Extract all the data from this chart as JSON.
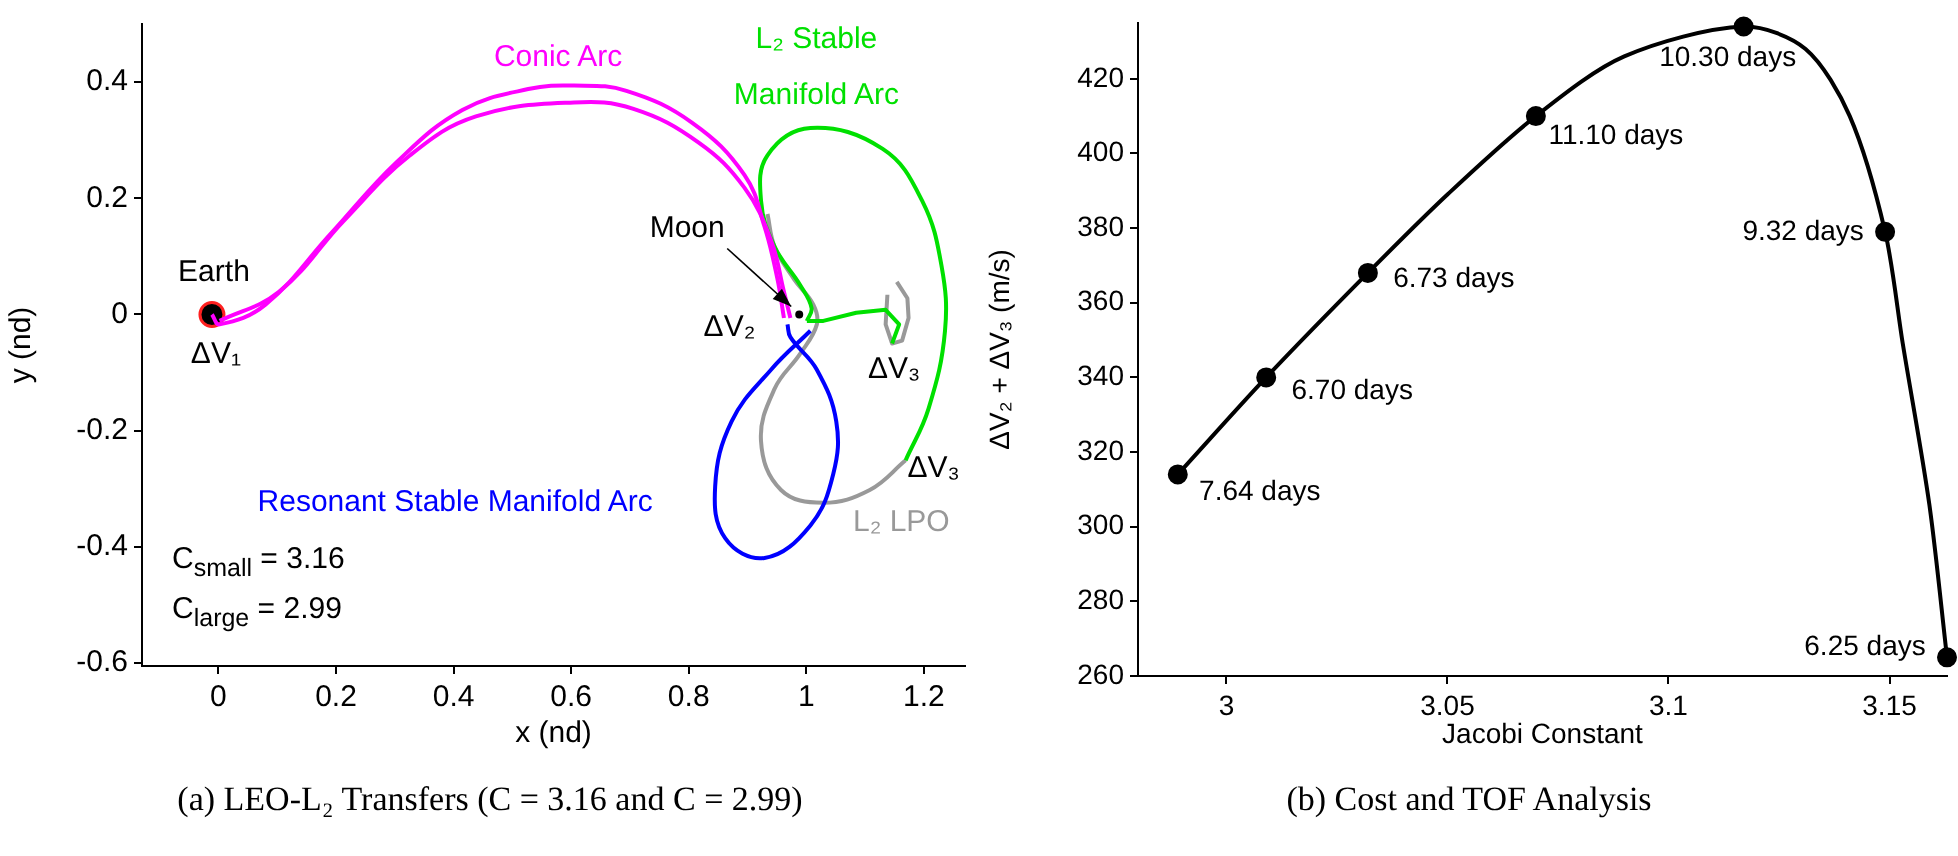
{
  "chart_data": [
    {
      "type": "line",
      "xlabel": "x (nd)",
      "ylabel": "y (nd)",
      "xlim": [
        -0.13,
        1.27
      ],
      "ylim": [
        -0.605,
        0.5
      ],
      "xticks": [
        0,
        0.2,
        0.4,
        0.6,
        0.8,
        1,
        1.2
      ],
      "yticks": [
        -0.6,
        -0.4,
        -0.2,
        0,
        0.2,
        0.4
      ],
      "grid": false,
      "legend": false,
      "marker": "none",
      "line_style": "solid",
      "series": [
        {
          "name": "Conic Arc",
          "color": "#ff00ff",
          "x": [
            -0.011,
            0.002,
            0.08,
            0.192,
            0.304,
            0.415,
            0.527,
            0.605,
            0.694,
            0.806,
            0.895,
            0.929,
            0.951,
            0.962
          ],
          "values": [
            0,
            -0.017,
            0.017,
            0.14,
            0.263,
            0.352,
            0.388,
            0.394,
            0.385,
            0.33,
            0.24,
            0.151,
            0.061,
            -0.006
          ]
        },
        {
          "color": "#ff00ff",
          "x": [
            0.002,
            0.103,
            0.214,
            0.326,
            0.438,
            0.605,
            0.706,
            0.817,
            0.895,
            0.94,
            0.962,
            0.973
          ],
          "values": [
            -0.011,
            0.039,
            0.162,
            0.274,
            0.341,
            0.365,
            0.354,
            0.296,
            0.218,
            0.128,
            0.039,
            -0.006
          ]
        },
        {
          "name": "L₂ Stable Manifold Arc",
          "color": "#00e000",
          "x": [
            1.169,
            1.208,
            1.236,
            1.23,
            1.197,
            1.13,
            1.007,
            0.934,
            0.923,
            0.946,
            0.99,
            1.009,
            1.001
          ],
          "values": [
            -0.251,
            -0.162,
            -0.028,
            0.084,
            0.196,
            0.285,
            0.321,
            0.274,
            0.196,
            0.117,
            0.05,
            0.011,
            -0.011
          ]
        },
        {
          "color": "#00e000",
          "x": [
            1.146,
            1.158,
            1.135,
            1.085,
            1.029,
            1.001
          ],
          "values": [
            -0.05,
            -0.017,
            0.008,
            0.003,
            -0.011,
            -0.011
          ]
        },
        {
          "name": "Resonant Stable Manifold Arc",
          "color": "#0000ff",
          "x": [
            0.968,
            0.973,
            1.018,
            1.051,
            1.046,
            1.007,
            0.929,
            0.862,
            0.845,
            0.873,
            0.94,
            1.007
          ],
          "values": [
            -0.017,
            -0.039,
            -0.095,
            -0.184,
            -0.274,
            -0.363,
            -0.419,
            -0.385,
            -0.296,
            -0.184,
            -0.095,
            -0.028
          ]
        },
        {
          "name": "L₂ LPO",
          "color": "#999999",
          "x": [
            1.169,
            1.108,
            1.029,
            0.957,
            0.923,
            0.946,
            0.99,
            1.018,
            1.012,
            0.979,
            0.946,
            0.934
          ],
          "values": [
            -0.251,
            -0.302,
            -0.324,
            -0.302,
            -0.218,
            -0.128,
            -0.067,
            -0.017,
            0.017,
            0.061,
            0.117,
            0.173
          ]
        },
        {
          "color": "#999999",
          "x": [
            1.154,
            1.172,
            1.174,
            1.163,
            1.146,
            1.135,
            1.138
          ],
          "values": [
            0.056,
            0.028,
            -0.006,
            -0.045,
            -0.05,
            -0.017,
            0.034
          ]
        },
        {
          "type": "scatter",
          "marker": "circle",
          "color": "#000000",
          "x": [
            -0.011
          ],
          "values": [
            0
          ]
        },
        {
          "type": "scatter",
          "marker": "circle",
          "color": "#000000",
          "x": [
            0.988
          ],
          "values": [
            0
          ]
        }
      ],
      "annotations": [
        {
          "text": "Earth",
          "x": -0.011,
          "y": 0
        },
        {
          "text": "ΔV₁",
          "x": -0.011,
          "y": 0
        },
        {
          "text": "Moon",
          "x": 0.988,
          "y": 0
        },
        {
          "text": "ΔV₂",
          "x": 0.968,
          "y": -0.006
        },
        {
          "text": "ΔV₃",
          "x": 1.146,
          "y": -0.05
        },
        {
          "text": "ΔV₃",
          "x": 1.169,
          "y": -0.251
        },
        "C$_{small}$ = 3.16",
        "C$_{large}$ = 2.99",
        "(a)  LEO-L₂ Transfers (C = 3.16 and C = 2.99)"
      ]
    },
    {
      "type": "line",
      "xlabel": "Jacobi Constant",
      "ylabel": "ΔV₂ + ΔV₃ (m/s)",
      "xlim": [
        2.98,
        3.163
      ],
      "ylim": [
        260,
        435
      ],
      "xticks": [
        3,
        3.05,
        3.1,
        3.15
      ],
      "yticks": [
        260,
        280,
        300,
        320,
        340,
        360,
        380,
        400,
        420
      ],
      "grid": false,
      "legend": false,
      "line_style": "solid",
      "series": [
        {
          "type": "line",
          "marker": "none",
          "color": "#000000",
          "x": [
            2.989,
            3.009,
            3.032,
            3.05,
            3.07,
            3.09,
            3.117,
            3.131,
            3.141,
            3.149,
            3.153,
            3.159,
            3.163
          ],
          "values": [
            314,
            340,
            368,
            389,
            410,
            426,
            434,
            428,
            410,
            379,
            349,
            306,
            265
          ]
        },
        {
          "type": "scatter",
          "marker": "circle",
          "color": "#000000",
          "x": [
            2.989,
            3.009,
            3.032,
            3.07,
            3.117,
            3.149,
            3.163
          ],
          "values": [
            314,
            340,
            368,
            410,
            434,
            379,
            265
          ]
        }
      ],
      "annotations": [
        {
          "text": "7.64 days",
          "x": 2.989,
          "y": 314
        },
        {
          "text": "6.70 days",
          "x": 3.009,
          "y": 340
        },
        {
          "text": "6.73 days",
          "x": 3.032,
          "y": 368
        },
        {
          "text": "11.10 days",
          "x": 3.07,
          "y": 410
        },
        {
          "text": "10.30 days",
          "x": 3.117,
          "y": 434
        },
        {
          "text": "9.32 days",
          "x": 3.149,
          "y": 379
        },
        {
          "text": "6.25 days",
          "x": 3.163,
          "y": 265
        },
        "(b)  Cost and TOF Analysis"
      ]
    }
  ]
}
